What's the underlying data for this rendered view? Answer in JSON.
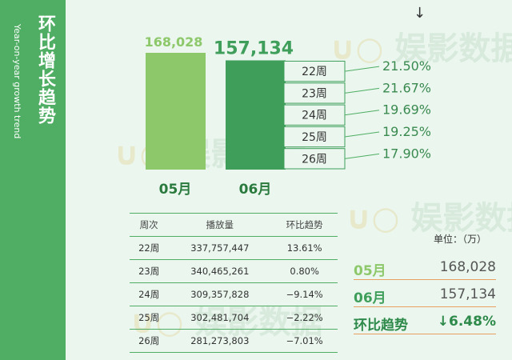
{
  "sidebar": {
    "title": "环比增长趋势",
    "subtitle": "Year-on-year growth trend"
  },
  "watermark": "娱影数据",
  "colors": {
    "bar_may": "#8dc86a",
    "bar_june": "#3e9e5a",
    "accent_dark": "#2e8a4a",
    "line": "#4fae64"
  },
  "chart_data": {
    "type": "bar",
    "categories": [
      "05月",
      "06月"
    ],
    "values": [
      168028,
      157134
    ],
    "value_labels": [
      "168,028",
      "157,134"
    ],
    "trend_arrow": "↓",
    "weekly_breakdown": [
      {
        "week": "22周",
        "share": "21.50%"
      },
      {
        "week": "23周",
        "share": "21.67%"
      },
      {
        "week": "24周",
        "share": "19.69%"
      },
      {
        "week": "25周",
        "share": "19.25%"
      },
      {
        "week": "26周",
        "share": "17.90%"
      }
    ]
  },
  "table": {
    "headers": [
      "周次",
      "播放量",
      "环比趋势"
    ],
    "rows": [
      [
        "22周",
        "337,757,447",
        "13.61%"
      ],
      [
        "23周",
        "340,465,261",
        "0.80%"
      ],
      [
        "24周",
        "309,357,828",
        "−9.14%"
      ],
      [
        "25周",
        "302,481,704",
        "−2.22%"
      ],
      [
        "26周",
        "281,273,803",
        "−7.01%"
      ]
    ]
  },
  "summary": {
    "unit": "单位：（万）",
    "rows": [
      {
        "label": "05月",
        "value": "168,028"
      },
      {
        "label": "06月",
        "value": "157,134"
      },
      {
        "label": "环比趋势",
        "value": "↓6.48%"
      }
    ]
  }
}
